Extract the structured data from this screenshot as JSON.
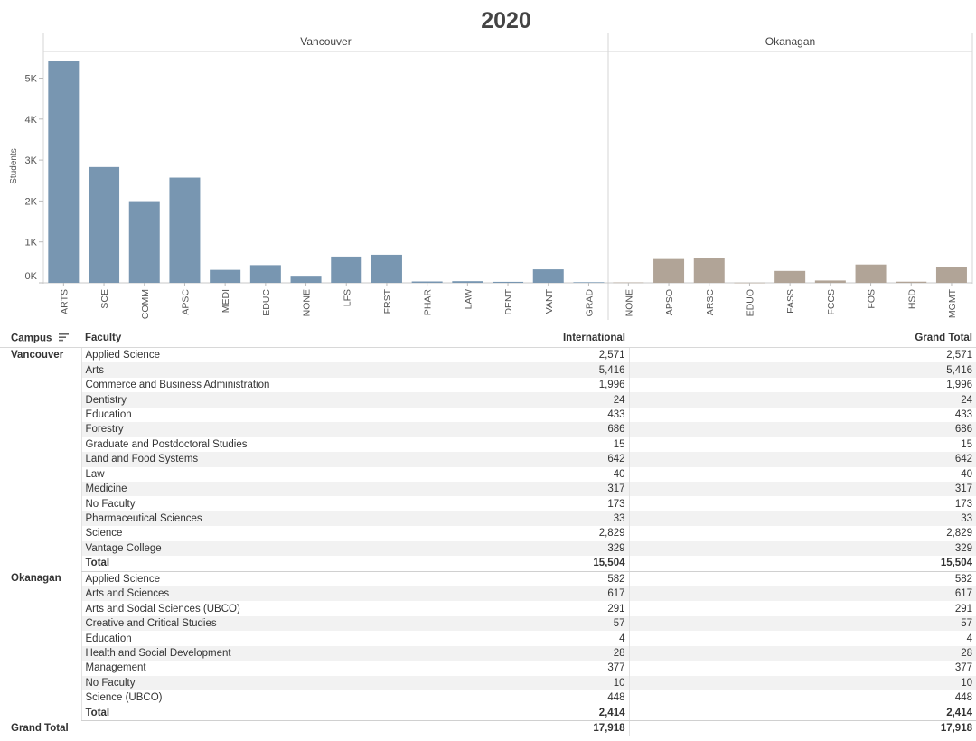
{
  "chart_data": {
    "type": "bar",
    "title": "2020",
    "ylabel": "Students",
    "ylim": [
      0,
      5400
    ],
    "yticks": [
      {
        "value": 0,
        "label": "0K"
      },
      {
        "value": 1000,
        "label": "1K"
      },
      {
        "value": 2000,
        "label": "2K"
      },
      {
        "value": 3000,
        "label": "3K"
      },
      {
        "value": 4000,
        "label": "4K"
      },
      {
        "value": 5000,
        "label": "5K"
      }
    ],
    "panels": [
      {
        "name": "Vancouver",
        "color": "#7896b1",
        "categories": [
          "ARTS",
          "SCE",
          "COMM",
          "APSC",
          "MEDI",
          "EDUC",
          "NONE",
          "LFS",
          "FRST",
          "PHAR",
          "LAW",
          "DENT",
          "VANT",
          "GRAD"
        ],
        "values": [
          5416,
          2829,
          1996,
          2571,
          317,
          433,
          173,
          642,
          686,
          33,
          40,
          24,
          329,
          15
        ]
      },
      {
        "name": "Okanagan",
        "color": "#b1a497",
        "categories": [
          "NONE",
          "APSO",
          "ARSC",
          "EDUO",
          "FASS",
          "FCCS",
          "FOS",
          "HSD",
          "MGMT"
        ],
        "values": [
          10,
          582,
          617,
          4,
          291,
          57,
          448,
          28,
          377
        ]
      }
    ]
  },
  "table": {
    "headers": {
      "campus": "Campus",
      "faculty": "Faculty",
      "international": "International",
      "grand_total": "Grand Total"
    },
    "rows": [
      {
        "campus": "Vancouver",
        "faculty": "Applied Science",
        "international": "2,571",
        "grand_total": "2,571",
        "stripe": false
      },
      {
        "campus": "",
        "faculty": "Arts",
        "international": "5,416",
        "grand_total": "5,416",
        "stripe": true
      },
      {
        "campus": "",
        "faculty": "Commerce and Business Administration",
        "international": "1,996",
        "grand_total": "1,996",
        "stripe": false
      },
      {
        "campus": "",
        "faculty": "Dentistry",
        "international": "24",
        "grand_total": "24",
        "stripe": true
      },
      {
        "campus": "",
        "faculty": "Education",
        "international": "433",
        "grand_total": "433",
        "stripe": false
      },
      {
        "campus": "",
        "faculty": "Forestry",
        "international": "686",
        "grand_total": "686",
        "stripe": true
      },
      {
        "campus": "",
        "faculty": "Graduate and Postdoctoral Studies",
        "international": "15",
        "grand_total": "15",
        "stripe": false
      },
      {
        "campus": "",
        "faculty": "Land and Food Systems",
        "international": "642",
        "grand_total": "642",
        "stripe": true
      },
      {
        "campus": "",
        "faculty": "Law",
        "international": "40",
        "grand_total": "40",
        "stripe": false
      },
      {
        "campus": "",
        "faculty": "Medicine",
        "international": "317",
        "grand_total": "317",
        "stripe": true
      },
      {
        "campus": "",
        "faculty": "No Faculty",
        "international": "173",
        "grand_total": "173",
        "stripe": false
      },
      {
        "campus": "",
        "faculty": "Pharmaceutical Sciences",
        "international": "33",
        "grand_total": "33",
        "stripe": true
      },
      {
        "campus": "",
        "faculty": "Science",
        "international": "2,829",
        "grand_total": "2,829",
        "stripe": false
      },
      {
        "campus": "",
        "faculty": "Vantage College",
        "international": "329",
        "grand_total": "329",
        "stripe": true
      },
      {
        "campus": "",
        "faculty": "Total",
        "international": "15,504",
        "grand_total": "15,504",
        "stripe": false,
        "total": true
      },
      {
        "campus": "Okanagan",
        "faculty": "Applied Science",
        "international": "582",
        "grand_total": "582",
        "stripe": false
      },
      {
        "campus": "",
        "faculty": "Arts and Sciences",
        "international": "617",
        "grand_total": "617",
        "stripe": true
      },
      {
        "campus": "",
        "faculty": "Arts and Social Sciences (UBCO)",
        "international": "291",
        "grand_total": "291",
        "stripe": false
      },
      {
        "campus": "",
        "faculty": "Creative and Critical Studies",
        "international": "57",
        "grand_total": "57",
        "stripe": true
      },
      {
        "campus": "",
        "faculty": "Education",
        "international": "4",
        "grand_total": "4",
        "stripe": false
      },
      {
        "campus": "",
        "faculty": "Health and Social Development",
        "international": "28",
        "grand_total": "28",
        "stripe": true
      },
      {
        "campus": "",
        "faculty": "Management",
        "international": "377",
        "grand_total": "377",
        "stripe": false
      },
      {
        "campus": "",
        "faculty": "No Faculty",
        "international": "10",
        "grand_total": "10",
        "stripe": true
      },
      {
        "campus": "",
        "faculty": "Science (UBCO)",
        "international": "448",
        "grand_total": "448",
        "stripe": false
      },
      {
        "campus": "",
        "faculty": "Total",
        "international": "2,414",
        "grand_total": "2,414",
        "stripe": false,
        "total": true
      }
    ],
    "grand_total": {
      "label": "Grand Total",
      "international": "17,918",
      "grand_total": "17,918"
    }
  }
}
